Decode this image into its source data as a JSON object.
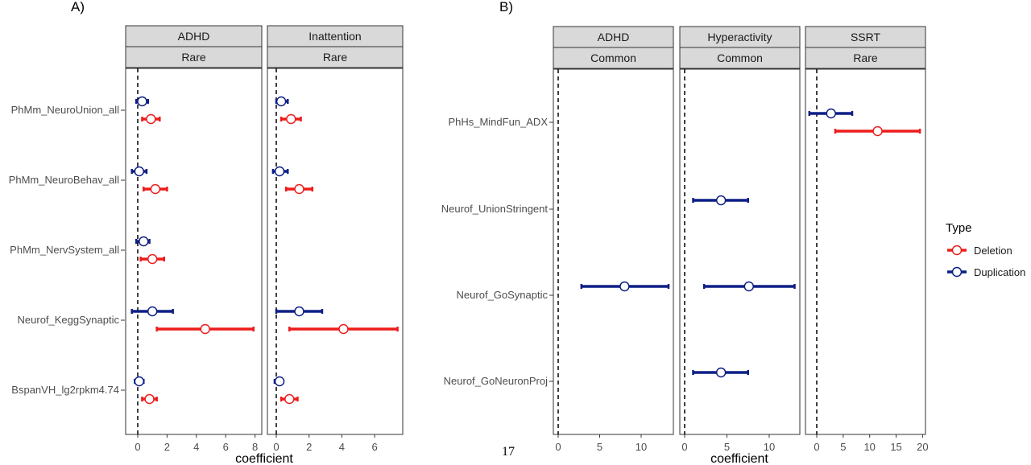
{
  "colors": {
    "deletion": "#ee1c1c",
    "duplication": "#0d1f86"
  },
  "page_number": "17",
  "legend": {
    "title": "Type",
    "items": [
      {
        "label": "Deletion",
        "color": "#ee1c1c"
      },
      {
        "label": "Duplication",
        "color": "#0d1f86"
      }
    ]
  },
  "chart_data": [
    {
      "panel_label": "A)",
      "type": "forest",
      "xlabel": "coefficient",
      "ylabel": "",
      "categories": [
        "PhMm_NeuroUnion_all",
        "PhMm_NeuroBehav_all",
        "PhMm_NervSystem_all",
        "Neurof_KeggSynaptic",
        "BspanVH_lg2rpkm4.74"
      ],
      "facets": [
        {
          "strips": [
            "ADHD",
            "Rare"
          ],
          "xlim": [
            -0.5,
            8.5
          ],
          "xticks": [
            0,
            2,
            4,
            6,
            8
          ],
          "series": [
            {
              "name": "Deletion",
              "points": [
                {
                  "category": "PhMm_NeuroUnion_all",
                  "estimate": 0.9,
                  "lower": 0.3,
                  "upper": 1.5
                },
                {
                  "category": "PhMm_NeuroBehav_all",
                  "estimate": 1.2,
                  "lower": 0.4,
                  "upper": 2.0
                },
                {
                  "category": "PhMm_NervSystem_all",
                  "estimate": 1.0,
                  "lower": 0.2,
                  "upper": 1.8
                },
                {
                  "category": "Neurof_KeggSynaptic",
                  "estimate": 4.6,
                  "lower": 1.3,
                  "upper": 7.9
                },
                {
                  "category": "BspanVH_lg2rpkm4.74",
                  "estimate": 0.8,
                  "lower": 0.3,
                  "upper": 1.3
                }
              ]
            },
            {
              "name": "Duplication",
              "points": [
                {
                  "category": "PhMm_NeuroUnion_all",
                  "estimate": 0.3,
                  "lower": -0.1,
                  "upper": 0.7
                },
                {
                  "category": "PhMm_NeuroBehav_all",
                  "estimate": 0.1,
                  "lower": -0.4,
                  "upper": 0.6
                },
                {
                  "category": "PhMm_NervSystem_all",
                  "estimate": 0.4,
                  "lower": -0.1,
                  "upper": 0.8
                },
                {
                  "category": "Neurof_KeggSynaptic",
                  "estimate": 1.0,
                  "lower": -0.4,
                  "upper": 2.4
                },
                {
                  "category": "BspanVH_lg2rpkm4.74",
                  "estimate": 0.1,
                  "lower": -0.2,
                  "upper": 0.4
                }
              ]
            }
          ]
        },
        {
          "strips": [
            "Inattention",
            "Rare"
          ],
          "xlim": [
            -0.7,
            7.8
          ],
          "xticks": [
            0,
            2,
            4,
            6
          ],
          "series": [
            {
              "name": "Deletion",
              "points": [
                {
                  "category": "PhMm_NeuroUnion_all",
                  "estimate": 0.9,
                  "lower": 0.3,
                  "upper": 1.5
                },
                {
                  "category": "PhMm_NeuroBehav_all",
                  "estimate": 1.4,
                  "lower": 0.6,
                  "upper": 2.2
                },
                {
                  "category": "PhMm_NervSystem_all",
                  "estimate": null,
                  "lower": null,
                  "upper": null
                },
                {
                  "category": "Neurof_KeggSynaptic",
                  "estimate": 4.1,
                  "lower": 0.8,
                  "upper": 7.4
                },
                {
                  "category": "BspanVH_lg2rpkm4.74",
                  "estimate": 0.8,
                  "lower": 0.3,
                  "upper": 1.3
                }
              ]
            },
            {
              "name": "Duplication",
              "points": [
                {
                  "category": "PhMm_NeuroUnion_all",
                  "estimate": 0.3,
                  "lower": 0.0,
                  "upper": 0.7
                },
                {
                  "category": "PhMm_NeuroBehav_all",
                  "estimate": 0.2,
                  "lower": -0.2,
                  "upper": 0.7
                },
                {
                  "category": "PhMm_NervSystem_all",
                  "estimate": null,
                  "lower": null,
                  "upper": null
                },
                {
                  "category": "Neurof_KeggSynaptic",
                  "estimate": 1.4,
                  "lower": 0.0,
                  "upper": 2.8
                },
                {
                  "category": "BspanVH_lg2rpkm4.74",
                  "estimate": 0.2,
                  "lower": -0.1,
                  "upper": 0.4
                }
              ]
            }
          ]
        }
      ]
    },
    {
      "panel_label": "B)",
      "type": "forest",
      "xlabel": "coefficient",
      "ylabel": "",
      "categories": [
        "PhHs_MindFun_ADX",
        "Neurof_UnionStringent",
        "Neurof_GoSynaptic",
        "Neurof_GoNeuronProj"
      ],
      "facets": [
        {
          "strips": [
            "ADHD",
            "Common"
          ],
          "xlim": [
            -0.7,
            13.8
          ],
          "xticks": [
            0,
            5,
            10
          ],
          "series": [
            {
              "name": "Duplication",
              "points": [
                {
                  "category": "Neurof_GoSynaptic",
                  "estimate": 8.0,
                  "lower": 2.8,
                  "upper": 13.3
                }
              ]
            }
          ]
        },
        {
          "strips": [
            "Hyperactivity",
            "Common"
          ],
          "xlim": [
            -0.7,
            13.8
          ],
          "xticks": [
            0,
            5,
            10
          ],
          "series": [
            {
              "name": "Duplication",
              "points": [
                {
                  "category": "Neurof_UnionStringent",
                  "estimate": 4.3,
                  "lower": 1.0,
                  "upper": 7.5
                },
                {
                  "category": "Neurof_GoSynaptic",
                  "estimate": 7.6,
                  "lower": 2.3,
                  "upper": 13.0
                },
                {
                  "category": "Neurof_GoNeuronProj",
                  "estimate": 4.3,
                  "lower": 1.0,
                  "upper": 7.5
                }
              ]
            }
          ]
        },
        {
          "strips": [
            "SSRT",
            "Rare"
          ],
          "xlim": [
            -1.5,
            20.2
          ],
          "xticks": [
            0,
            5,
            10,
            15,
            20
          ],
          "series": [
            {
              "name": "Deletion",
              "points": [
                {
                  "category": "PhHs_MindFun_ADX",
                  "estimate": 11.5,
                  "lower": 3.5,
                  "upper": 19.5
                }
              ]
            },
            {
              "name": "Duplication",
              "points": [
                {
                  "category": "PhHs_MindFun_ADX",
                  "estimate": 2.7,
                  "lower": -1.4,
                  "upper": 6.7
                }
              ]
            }
          ]
        }
      ]
    }
  ]
}
